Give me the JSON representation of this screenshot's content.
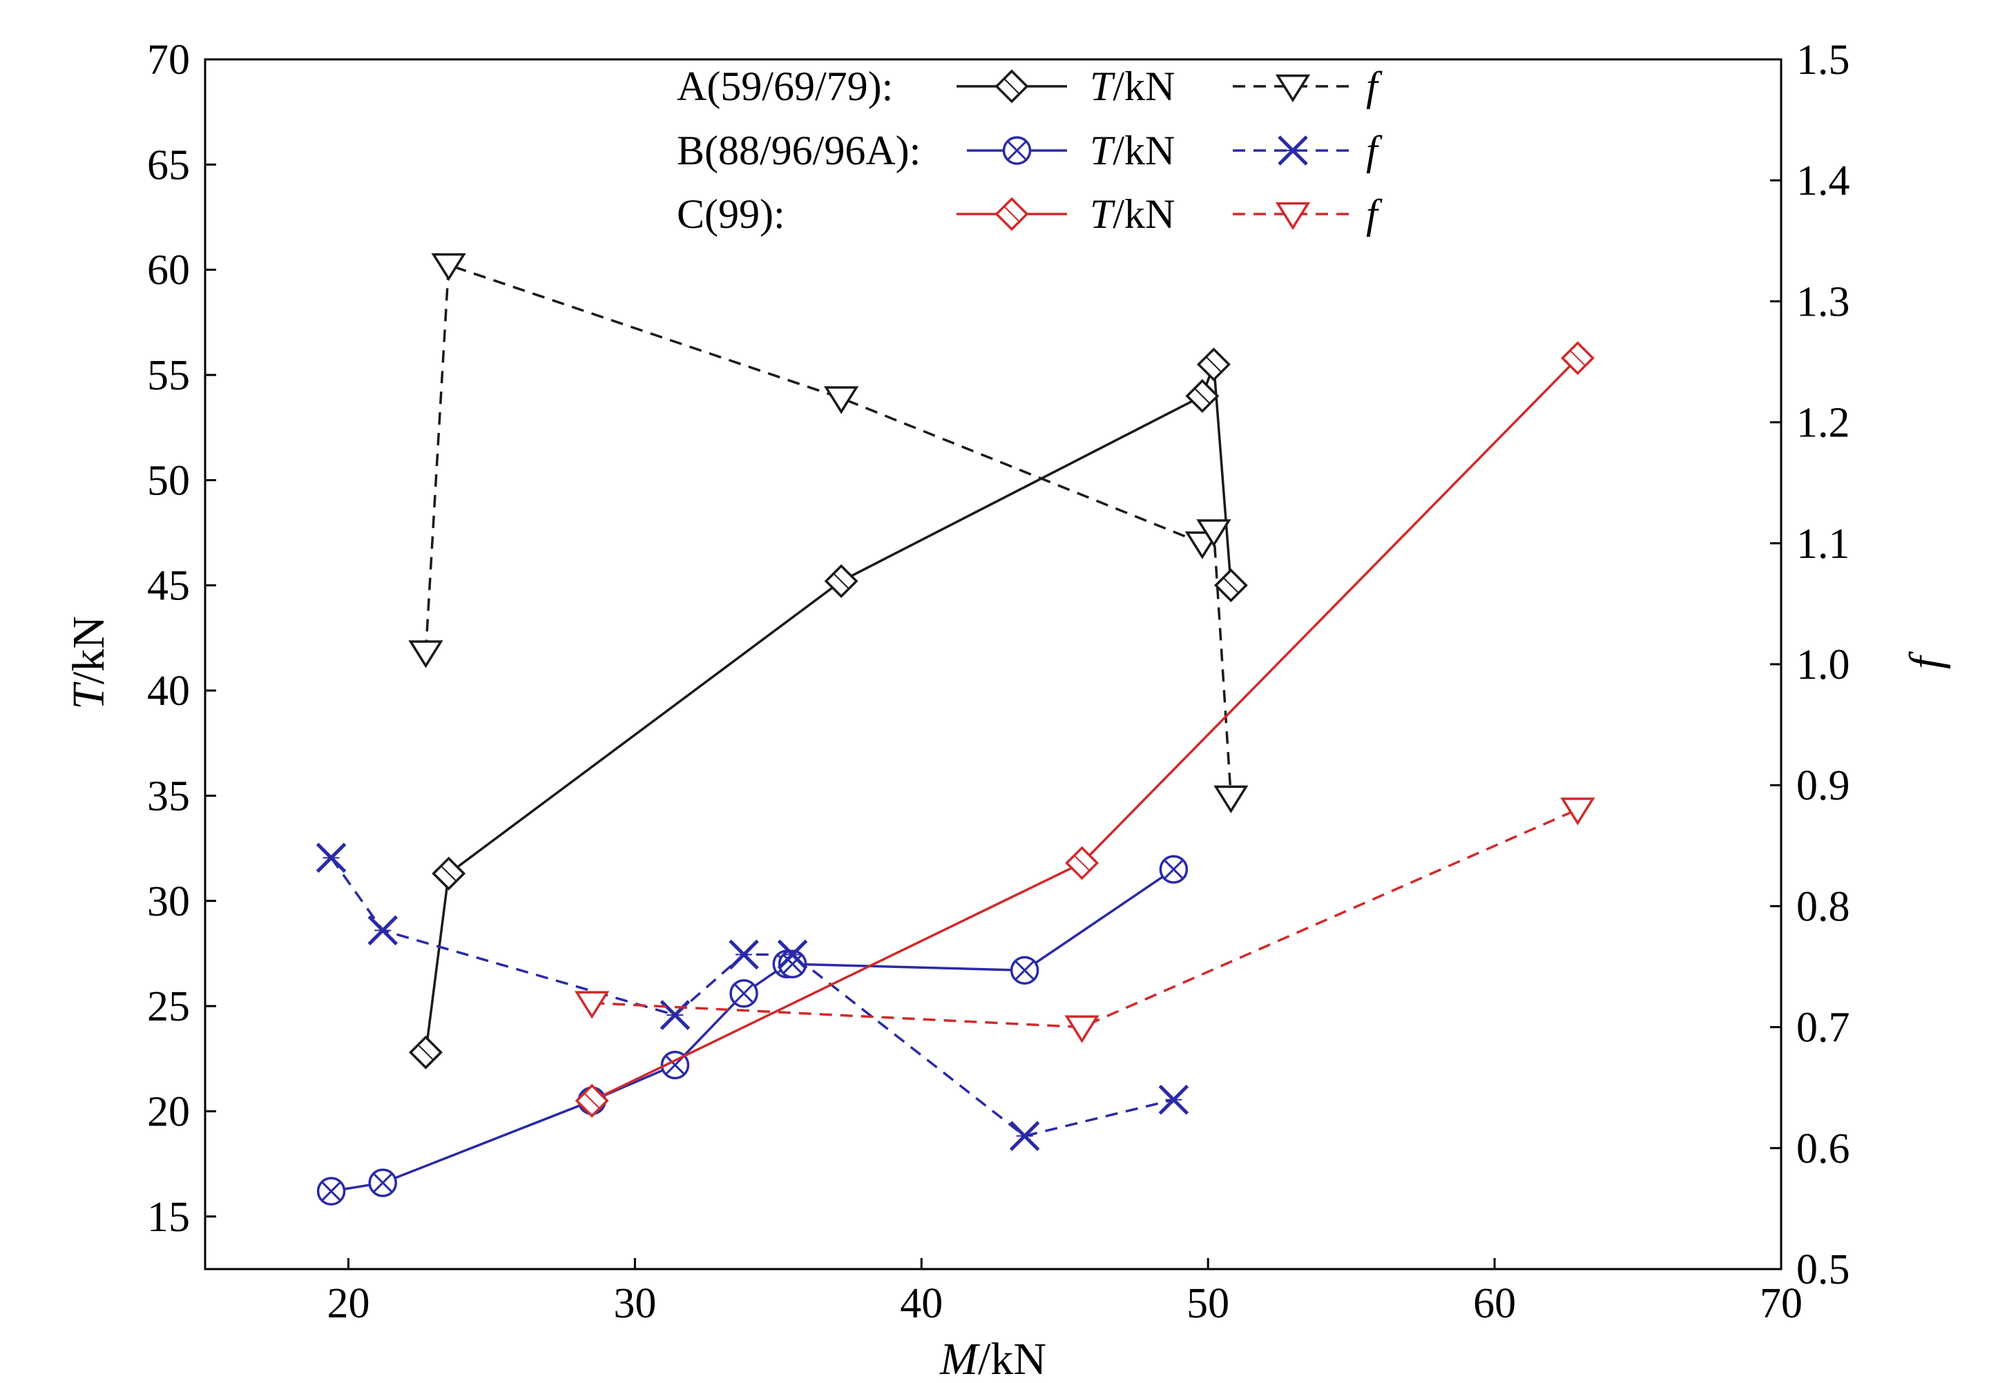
{
  "chart_data": {
    "type": "line",
    "xlabel": {
      "var": "M",
      "unit": "/kN"
    },
    "ylabel_left": {
      "var": "T",
      "unit": "/kN"
    },
    "ylabel_right": "f",
    "xlim": [
      15,
      70
    ],
    "ylim_left": [
      12.5,
      70
    ],
    "ylim_right": [
      0.5,
      1.5
    ],
    "x_ticks": [
      20,
      30,
      40,
      50,
      60,
      70
    ],
    "y_left_ticks": [
      15,
      20,
      25,
      30,
      35,
      40,
      45,
      50,
      55,
      60,
      65,
      70
    ],
    "y_right_ticks": [
      0.5,
      0.6,
      0.7,
      0.8,
      0.9,
      1.0,
      1.1,
      1.2,
      1.3,
      1.4,
      1.5
    ],
    "y_right_tick_labels": [
      "0.5",
      "0.6",
      "0.7",
      "0.8",
      "0.9",
      "1.0",
      "1.1",
      "1.2",
      "1.3",
      "1.4",
      "1.5"
    ],
    "grid": false,
    "legend_position": "top-center",
    "groups": [
      {
        "label": "A(59/69/79):",
        "color": "#1a1a1a",
        "T_marker": "diamond",
        "f_marker": "triangle-down",
        "T": {
          "x": [
            22.7,
            23.5,
            37.2,
            49.8,
            50.2,
            50.8
          ],
          "y": [
            22.8,
            31.3,
            45.2,
            54.0,
            55.5,
            45.0
          ]
        },
        "f": {
          "x": [
            22.7,
            23.5,
            37.2,
            49.8,
            50.2,
            50.8
          ],
          "y": [
            1.01,
            1.33,
            1.22,
            1.1,
            1.11,
            0.89
          ]
        }
      },
      {
        "label": "B(88/96/96A):",
        "color": "#2a2aa8",
        "T_marker": "circle-x",
        "f_marker": "x",
        "T": {
          "x": [
            19.4,
            21.2,
            28.5,
            31.4,
            33.8,
            35.3,
            35.5,
            43.6,
            48.8
          ],
          "y": [
            16.2,
            16.6,
            20.5,
            22.2,
            25.6,
            27.0,
            27.0,
            26.7,
            31.5
          ]
        },
        "f": {
          "x": [
            19.4,
            21.2,
            31.4,
            33.8,
            35.5,
            43.6,
            48.8
          ],
          "y": [
            0.84,
            0.78,
            0.71,
            0.76,
            0.76,
            0.61,
            0.64
          ]
        }
      },
      {
        "label": "C(99):",
        "color": "#d02a2a",
        "T_marker": "diamond",
        "f_marker": "triangle-down",
        "T": {
          "x": [
            28.5,
            45.6,
            62.9
          ],
          "y": [
            20.5,
            31.8,
            55.8
          ]
        },
        "f": {
          "x": [
            28.5,
            45.6,
            62.9
          ],
          "y": [
            0.72,
            0.7,
            0.88
          ]
        }
      }
    ],
    "legend_items": {
      "T_label": {
        "var": "T",
        "unit": "/kN"
      },
      "f_label": "f"
    }
  }
}
